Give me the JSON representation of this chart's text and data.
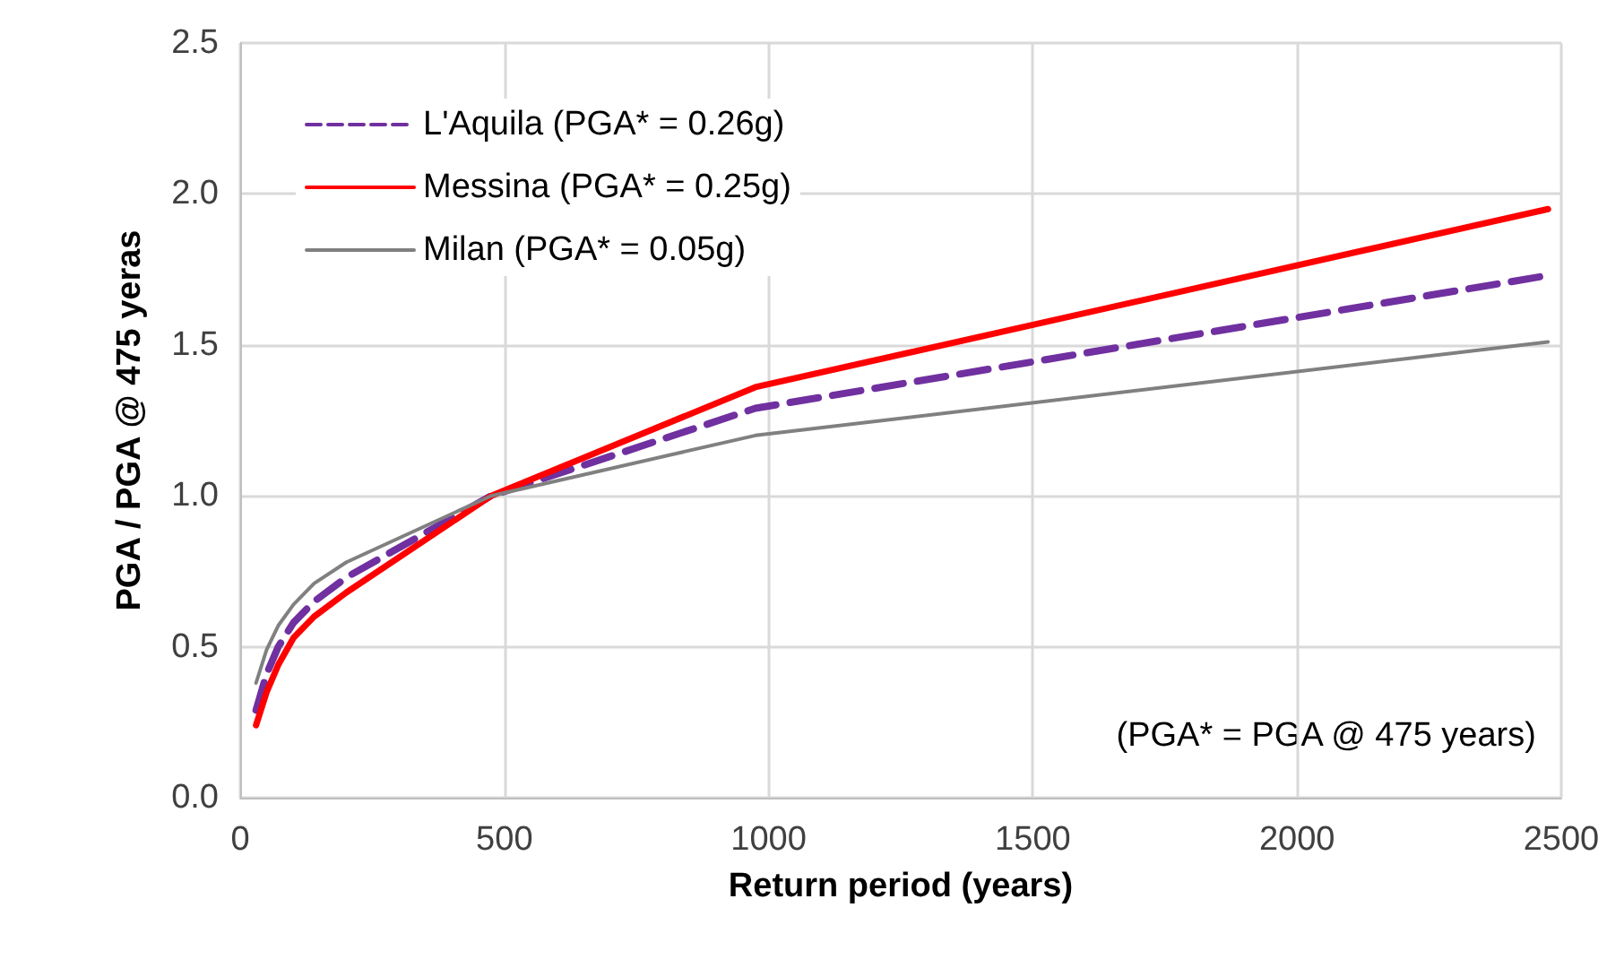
{
  "chart_data": {
    "type": "line",
    "xlabel": "Return period (years)",
    "ylabel": "PGA / PGA @ 475 yeras",
    "x": [
      30,
      50,
      72,
      101,
      140,
      201,
      475,
      975,
      2475
    ],
    "series": [
      {
        "name": "L'Aquila (PGA* = 0.26g)",
        "color": "#7030a0",
        "line_style": "dashed",
        "values": [
          0.29,
          0.41,
          0.5,
          0.58,
          0.65,
          0.73,
          1.0,
          1.29,
          1.73
        ]
      },
      {
        "name": "Messina (PGA* = 0.25g)",
        "color": "#ff0000",
        "line_style": "solid",
        "values": [
          0.24,
          0.35,
          0.44,
          0.53,
          0.6,
          0.68,
          1.0,
          1.36,
          1.95
        ]
      },
      {
        "name": "Milan (PGA* = 0.05g)",
        "color": "#808080",
        "line_style": "solid",
        "values": [
          0.38,
          0.49,
          0.57,
          0.64,
          0.71,
          0.78,
          1.0,
          1.2,
          1.51
        ]
      }
    ],
    "xlim": [
      0,
      2500
    ],
    "xticks": [
      0,
      500,
      1000,
      1500,
      2000,
      2500
    ],
    "ylim": [
      0,
      2.5
    ],
    "yticks": [
      {
        "value": 0,
        "label": "0.0"
      },
      {
        "value": 0.5,
        "label": "0.5"
      },
      {
        "value": 1,
        "label": "1.0"
      },
      {
        "value": 1.5,
        "label": "1.5"
      },
      {
        "value": 2,
        "label": "2.0"
      },
      {
        "value": 2.5,
        "label": "2.5"
      }
    ],
    "grid": true,
    "legend": "top left",
    "marker": "none",
    "annotations": [
      "(PGA* = PGA @ 475 years)"
    ]
  }
}
